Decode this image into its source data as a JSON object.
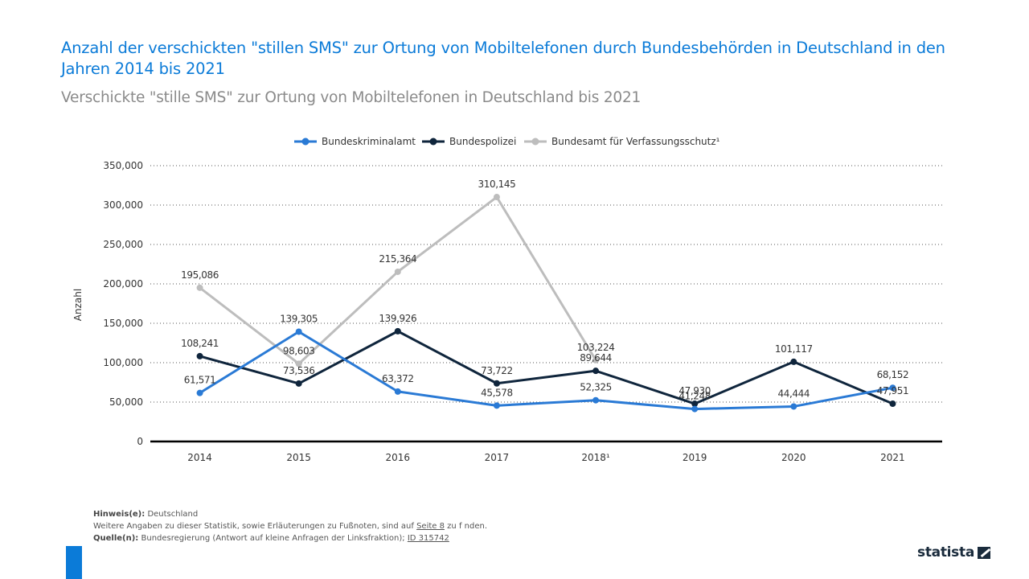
{
  "header": {
    "title": "Anzahl der verschickten \"stillen SMS\" zur Ortung von Mobiltelefonen durch Bundesbehörden in Deutschland in den Jahren 2014 bis 2021",
    "subtitle": "Verschickte \"stille SMS\" zur Ortung von Mobiltelefonen in Deutschland bis 2021"
  },
  "chart_data": {
    "type": "line",
    "title": "Anzahl der verschickten \"stillen SMS\" zur Ortung von Mobiltelefonen durch Bundesbehörden in Deutschland in den Jahren 2014 bis 2021",
    "xlabel": "",
    "ylabel": "Anzahl",
    "categories": [
      "2014",
      "2015",
      "2016",
      "2017",
      "2018¹",
      "2019",
      "2020",
      "2021"
    ],
    "ylim": [
      0,
      350000
    ],
    "yticks": [
      0,
      50000,
      100000,
      150000,
      200000,
      250000,
      300000,
      350000
    ],
    "ytick_labels": [
      "0",
      "50,000",
      "100,000",
      "150,000",
      "200,000",
      "250,000",
      "300,000",
      "350,000"
    ],
    "grid": true,
    "legend_position": "top-center",
    "series": [
      {
        "name": "Bundeskriminalamt",
        "color": "#2a7ad5",
        "values": [
          61571,
          139305,
          63372,
          45578,
          52325,
          41248,
          44444,
          68152
        ],
        "labels": [
          "61,571",
          "139,305",
          "63,372",
          "45,578",
          "52,325",
          "41,248",
          "44,444",
          "68,152"
        ]
      },
      {
        "name": "Bundespolizei",
        "color": "#0f253c",
        "values": [
          108241,
          73536,
          139926,
          73722,
          89644,
          47930,
          101117,
          47951
        ],
        "labels": [
          "108,241",
          "73,536",
          "139,926",
          "73,722",
          "89,644",
          "47,930",
          "101,117",
          "47,951"
        ]
      },
      {
        "name": "Bundesamt für Verfassungsschutz¹",
        "color": "#bdbdbd",
        "values": [
          195086,
          98603,
          215364,
          310145,
          103224,
          null,
          null,
          null
        ],
        "labels": [
          "195,086",
          "98,603",
          "215,364",
          "310,145",
          "103,224",
          null,
          null,
          null
        ]
      }
    ]
  },
  "footer": {
    "hint_label": "Hinweis(e):",
    "hint_text": "Deutschland",
    "more_text_before": "Weitere Angaben zu dieser Statistik, sowie Erläuterungen zu Fußnoten, sind auf",
    "more_link": "Seite 8",
    "more_text_after": "zu f nden.",
    "source_label": "Quelle(n):",
    "source_text": "Bundesregierung (Antwort auf kleine Anfragen der Linksfraktion);",
    "source_id": "ID 315742"
  },
  "brand": {
    "logo_text": "statista",
    "accent_color": "#0b7bd8"
  }
}
